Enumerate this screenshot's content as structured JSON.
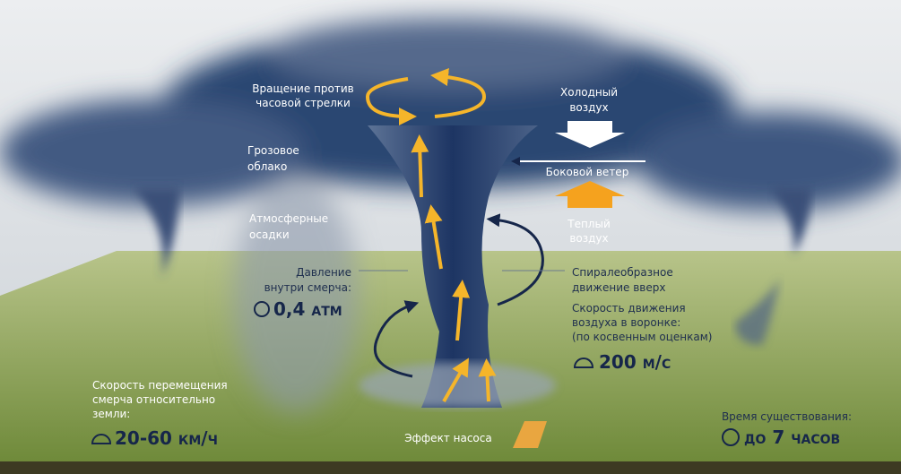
{
  "rotation": [
    "Вращение против",
    "часовой стрелки"
  ],
  "storm_cloud": [
    "Грозовое",
    "облако"
  ],
  "precipitation": [
    "Атмосферные",
    "осадки"
  ],
  "pressure": {
    "label": [
      "Давление",
      "внутри смерча:"
    ],
    "value": "0,4 атм"
  },
  "cold_air": [
    "Холодный",
    "воздух"
  ],
  "side_wind": "Боковой ветер",
  "warm_air": [
    "Теплый",
    "воздух"
  ],
  "spiral": [
    "Спиралеобразное",
    "движение вверх"
  ],
  "air_speed": {
    "label": [
      "Скорость движения",
      "воздуха в воронке:",
      "(по косвенным оценкам)"
    ],
    "value": "200 м/с"
  },
  "travel_speed": {
    "label": [
      "Скорость перемещения",
      "смерча относительно",
      "земли:"
    ],
    "value": "20-60 км/ч"
  },
  "lifetime": {
    "label": "Время существования:",
    "value": "до 7 часов"
  },
  "pump": "Эффект насоса"
}
